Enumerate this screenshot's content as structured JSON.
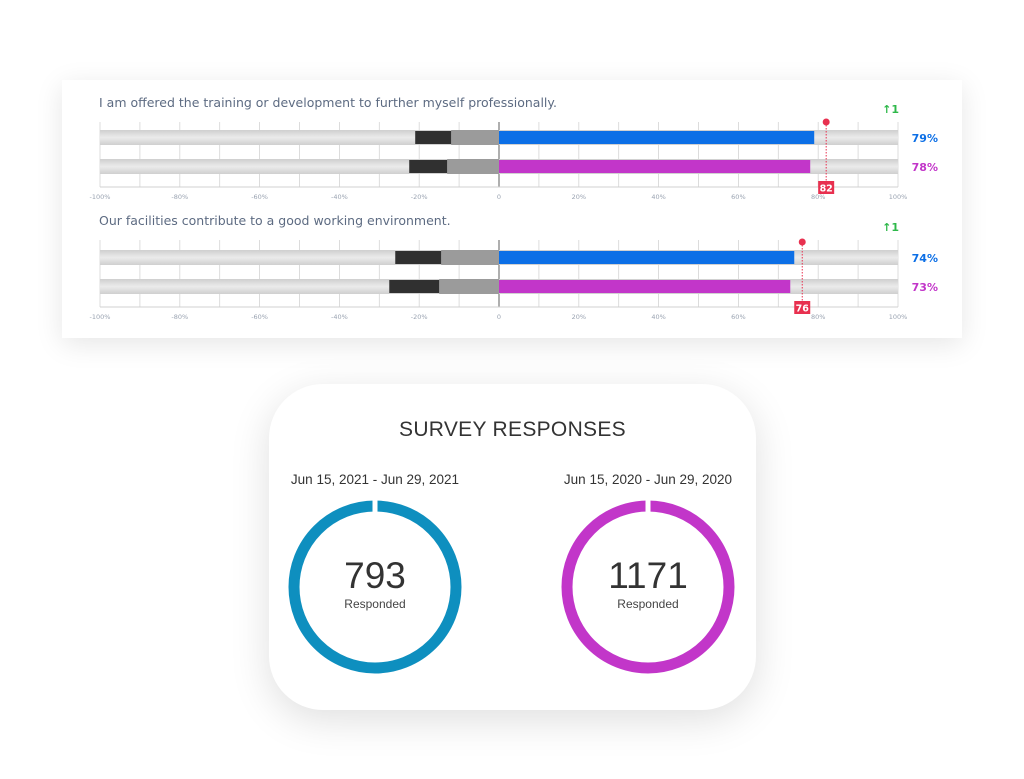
{
  "chart_data": {
    "type": "bar",
    "subtype": "diverging-stacked-bar",
    "xlim": [
      -100,
      100
    ],
    "ticks": [
      "-100%",
      "-80%",
      "-60%",
      "-40%",
      "-20%",
      "0",
      "20%",
      "40%",
      "60%",
      "80%",
      "100%"
    ],
    "colors": {
      "current": "#0c6fe6",
      "previous": "#c236c9",
      "negative_strong": "#303030",
      "negative_mild": "#9b9b9b",
      "benchmark": "#e8304f",
      "trend_up": "#2eb84a"
    },
    "questions": [
      {
        "text": "I am offered the training or development to further myself professionally.",
        "trend": "↑1",
        "benchmark": 82,
        "bars": [
          {
            "series": "current",
            "positive": 79,
            "negative_mild": -12,
            "negative_strong": -9,
            "label": "79%"
          },
          {
            "series": "previous",
            "positive": 78,
            "negative_mild": -13,
            "negative_strong": -9.5,
            "label": "78%"
          }
        ]
      },
      {
        "text": "Our facilities contribute to a good working environment.",
        "trend": "↑1",
        "benchmark": 76,
        "bars": [
          {
            "series": "current",
            "positive": 74,
            "negative_mild": -14.5,
            "negative_strong": -11.5,
            "label": "74%"
          },
          {
            "series": "previous",
            "positive": 73,
            "negative_mild": -15,
            "negative_strong": -12.5,
            "label": "73%"
          }
        ]
      }
    ]
  },
  "responses": {
    "title": "SURVEY RESPONSES",
    "items": [
      {
        "period": "Jun 15, 2021 - Jun 29, 2021",
        "count": "793",
        "label": "Responded",
        "color": "#0e8fbf"
      },
      {
        "period": "Jun 15, 2020 - Jun 29, 2020",
        "count": "1171",
        "label": "Responded",
        "color": "#c236c9"
      }
    ]
  }
}
